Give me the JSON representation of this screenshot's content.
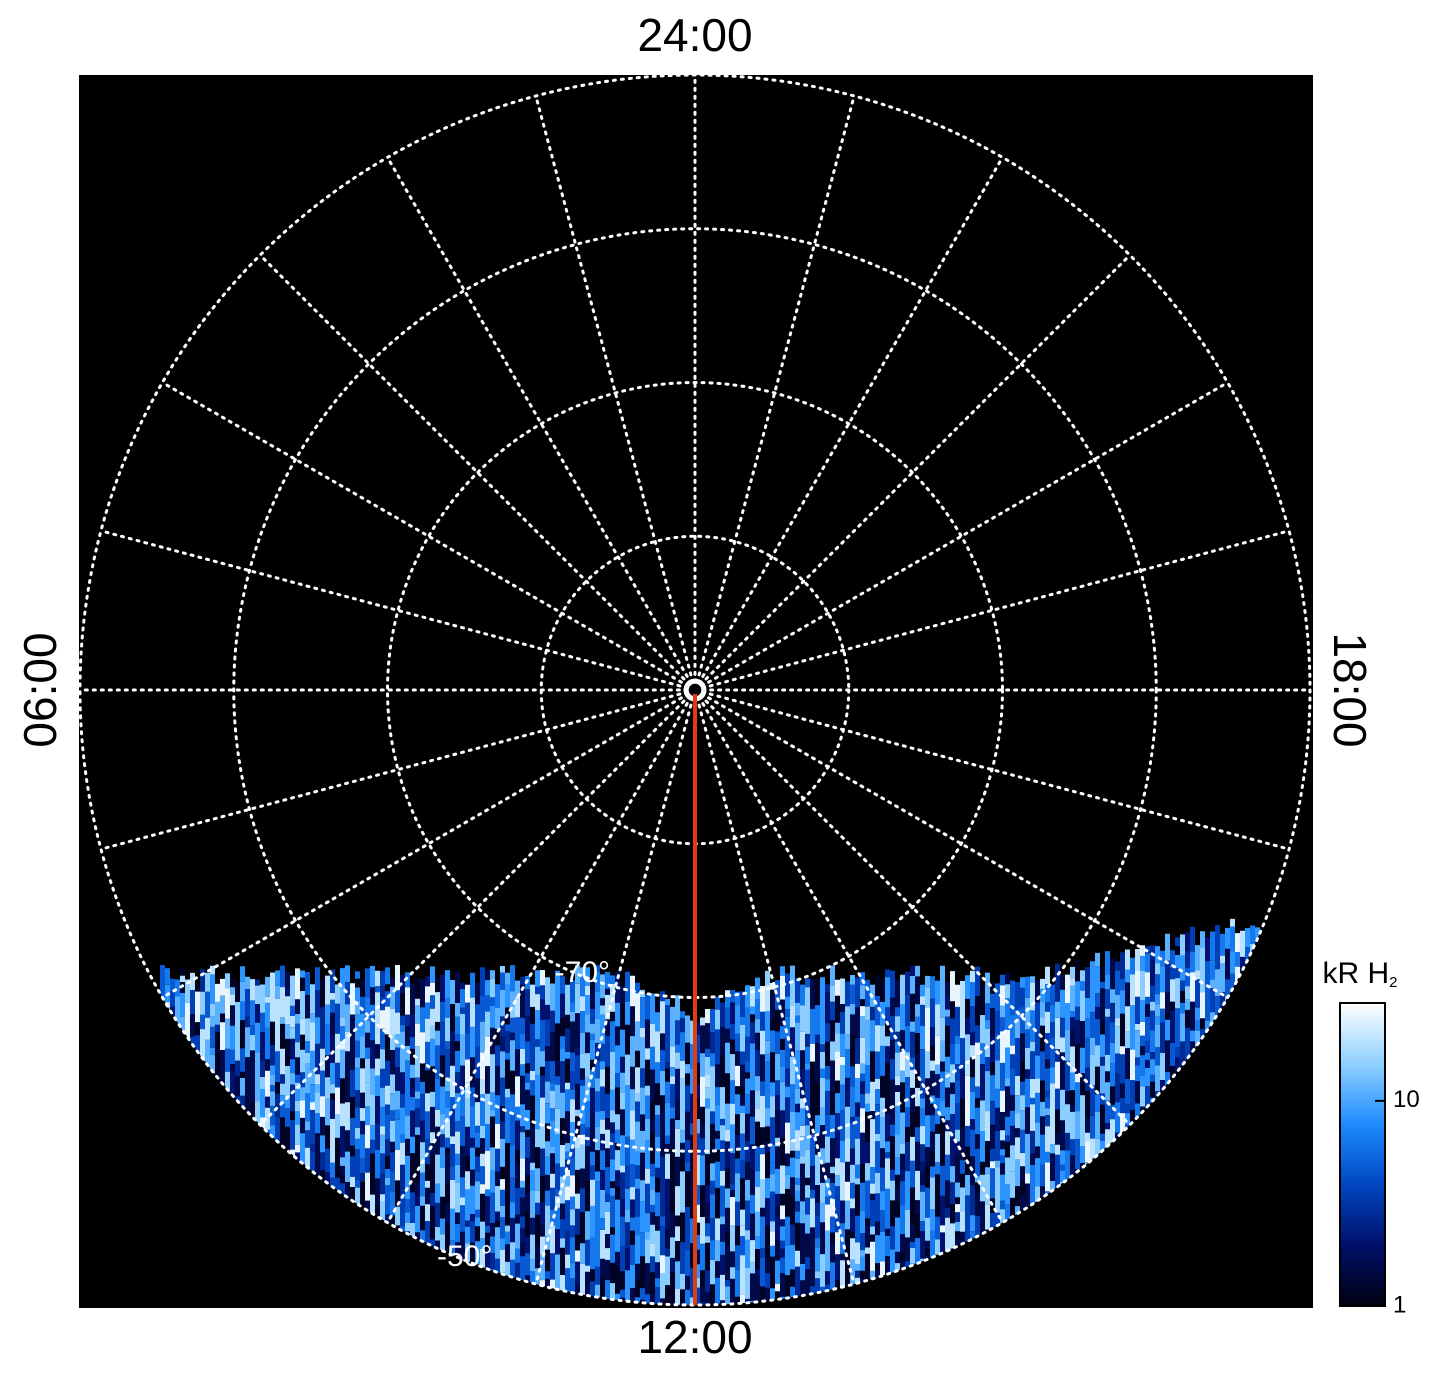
{
  "chart_data": {
    "type": "polar-image",
    "rlim": [
      -90,
      -50
    ],
    "lat_grid": [
      -80,
      -70,
      -60,
      -50
    ],
    "lat_labels": [
      {
        "value": -70,
        "label": "-70°"
      },
      {
        "value": -50,
        "label": "-50°"
      }
    ],
    "lt_grid_step": 1,
    "lt_ticks": [
      {
        "value": 0,
        "label": "24:00"
      },
      {
        "value": 6,
        "label": "06:00"
      },
      {
        "value": 12,
        "label": "12:00"
      },
      {
        "value": 18,
        "label": "18:00"
      }
    ],
    "marker_lt": 12,
    "marker_color": "#e03c10",
    "grid_color": "#ffffff",
    "colorbar": {
      "label": "kR H",
      "label_sub": "2",
      "lim": [
        1,
        30
      ],
      "ticks": [
        1,
        10
      ],
      "log": true,
      "colormap": [
        "#000010",
        "#00106a",
        "#0046c0",
        "#1e8cff",
        "#90d0ff",
        "#ffffff"
      ]
    }
  }
}
